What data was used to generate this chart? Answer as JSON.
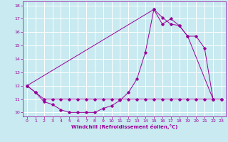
{
  "background_color": "#c8eaf0",
  "grid_color": "#ffffff",
  "line_color": "#990099",
  "xlabel": "Windchill (Refroidissement éolien,°C)",
  "xlim": [
    -0.5,
    23.5
  ],
  "ylim": [
    9.7,
    18.3
  ],
  "yticks": [
    10,
    11,
    12,
    13,
    14,
    15,
    16,
    17,
    18
  ],
  "xticks": [
    0,
    1,
    2,
    3,
    4,
    5,
    6,
    7,
    8,
    9,
    10,
    11,
    12,
    13,
    14,
    15,
    16,
    17,
    18,
    19,
    20,
    21,
    22,
    23
  ],
  "line1_x": [
    0,
    1,
    2,
    3,
    4,
    5,
    6,
    7,
    8,
    9,
    10,
    11,
    12,
    13,
    14,
    15,
    16,
    17,
    18,
    19,
    20,
    21,
    22,
    23
  ],
  "line1_y": [
    12.0,
    11.5,
    10.8,
    10.6,
    10.2,
    10.0,
    10.0,
    10.0,
    10.0,
    10.3,
    10.5,
    10.9,
    11.5,
    12.5,
    14.5,
    17.7,
    16.6,
    17.0,
    16.5,
    15.7,
    15.7,
    14.8,
    11.0,
    11.0
  ],
  "line2_x": [
    0,
    1,
    2,
    3,
    4,
    5,
    6,
    7,
    8,
    9,
    10,
    11,
    12,
    13,
    14,
    15,
    16,
    17,
    18,
    19,
    20,
    21,
    22,
    23
  ],
  "line2_y": [
    12.0,
    11.5,
    11.0,
    11.0,
    11.0,
    11.0,
    11.0,
    11.0,
    11.0,
    11.0,
    11.0,
    11.0,
    11.0,
    11.0,
    11.0,
    11.0,
    11.0,
    11.0,
    11.0,
    11.0,
    11.0,
    11.0,
    11.0,
    11.0
  ],
  "line3_x": [
    0,
    15,
    16,
    17,
    18,
    19,
    22
  ],
  "line3_y": [
    12.0,
    17.7,
    17.1,
    16.6,
    16.5,
    15.7,
    11.0
  ]
}
